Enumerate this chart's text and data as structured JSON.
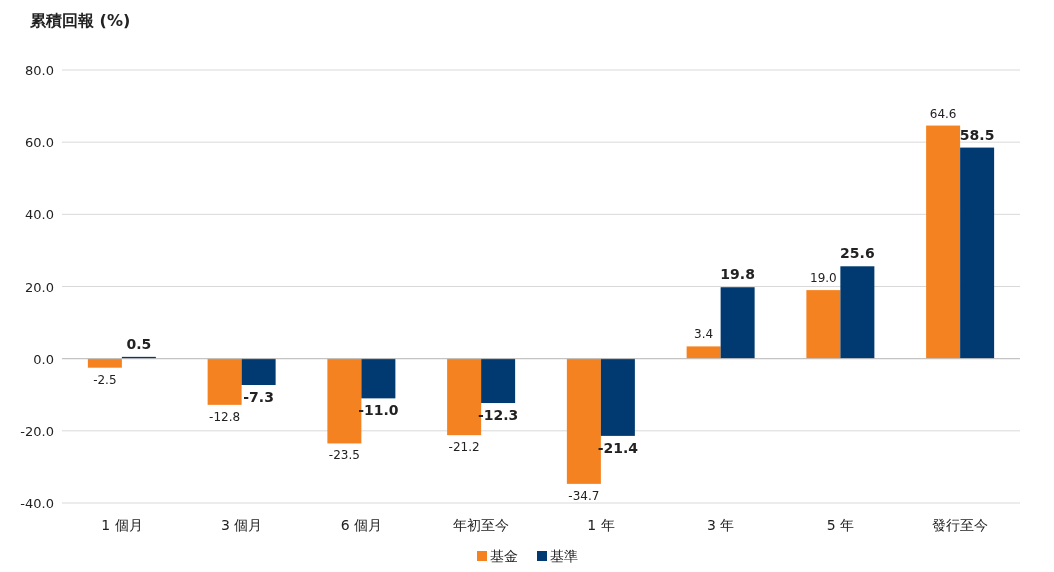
{
  "chart_data": {
    "type": "bar",
    "title": "累積回報 (%)",
    "categories": [
      "1 個月",
      "3 個月",
      "6 個月",
      "年初至今",
      "1 年",
      "3 年",
      "5 年",
      "發行至今"
    ],
    "series": [
      {
        "name": "基金",
        "color": "#f58220",
        "values": [
          -2.5,
          -12.8,
          -23.5,
          -21.2,
          -34.7,
          3.4,
          19.0,
          64.6
        ],
        "value_labels": [
          "-2.5",
          "-12.8",
          "-23.5",
          "-21.2",
          "-34.7",
          "3.4",
          "19.0",
          "64.6"
        ]
      },
      {
        "name": "基準",
        "color": "#003a70",
        "values": [
          0.5,
          -7.3,
          -11.0,
          -12.3,
          -21.4,
          19.8,
          25.6,
          58.5
        ],
        "value_labels": [
          "0.5",
          "-7.3",
          "-11.0",
          "-12.3",
          "-21.4",
          "19.8",
          "25.6",
          "58.5"
        ]
      }
    ],
    "ylim": [
      -40,
      80
    ],
    "yticks": [
      {
        "value": -40,
        "label": "-40.0"
      },
      {
        "value": -20,
        "label": "-20.0"
      },
      {
        "value": 0,
        "label": "0.0"
      },
      {
        "value": 20,
        "label": "20.0"
      },
      {
        "value": 40,
        "label": "40.0"
      },
      {
        "value": 60,
        "label": "60.0"
      },
      {
        "value": 80,
        "label": "80.0"
      }
    ],
    "grid": "y",
    "legend": "bottom"
  }
}
